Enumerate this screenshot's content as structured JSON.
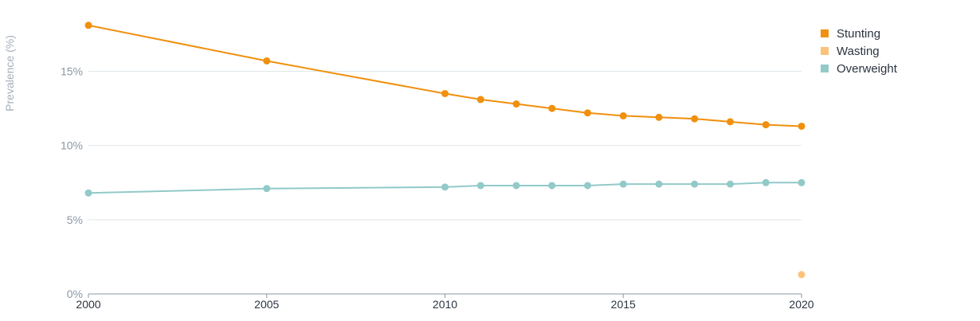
{
  "chart_data": {
    "type": "line",
    "ylabel": "Prevalence (%)",
    "xlabel": "",
    "ylim": [
      0,
      19
    ],
    "xlim": [
      2000,
      2020
    ],
    "y_ticks": [
      {
        "value": 0,
        "label": "0%"
      },
      {
        "value": 5,
        "label": "5%"
      },
      {
        "value": 10,
        "label": "10%"
      },
      {
        "value": 15,
        "label": "15%"
      }
    ],
    "x_ticks": [
      {
        "value": 2000,
        "label": "2000"
      },
      {
        "value": 2005,
        "label": "2005"
      },
      {
        "value": 2010,
        "label": "2010"
      },
      {
        "value": 2015,
        "label": "2015"
      },
      {
        "value": 2020,
        "label": "2020"
      }
    ],
    "grid": true,
    "legend_position": "top-right",
    "series": [
      {
        "name": "Stunting",
        "color": "#f0900e",
        "points": [
          {
            "x": 2000,
            "y": 18.1
          },
          {
            "x": 2005,
            "y": 15.7
          },
          {
            "x": 2010,
            "y": 13.5
          },
          {
            "x": 2011,
            "y": 13.1
          },
          {
            "x": 2012,
            "y": 12.8
          },
          {
            "x": 2013,
            "y": 12.5
          },
          {
            "x": 2014,
            "y": 12.2
          },
          {
            "x": 2015,
            "y": 12.0
          },
          {
            "x": 2016,
            "y": 11.9
          },
          {
            "x": 2017,
            "y": 11.8
          },
          {
            "x": 2018,
            "y": 11.6
          },
          {
            "x": 2019,
            "y": 11.4
          },
          {
            "x": 2020,
            "y": 11.3
          }
        ]
      },
      {
        "name": "Wasting",
        "color": "#fbc37a",
        "points": [
          {
            "x": 2020,
            "y": 1.3
          }
        ]
      },
      {
        "name": "Overweight",
        "color": "#92c9c9",
        "points": [
          {
            "x": 2000,
            "y": 6.8
          },
          {
            "x": 2005,
            "y": 7.1
          },
          {
            "x": 2010,
            "y": 7.2
          },
          {
            "x": 2011,
            "y": 7.3
          },
          {
            "x": 2012,
            "y": 7.3
          },
          {
            "x": 2013,
            "y": 7.3
          },
          {
            "x": 2014,
            "y": 7.3
          },
          {
            "x": 2015,
            "y": 7.4
          },
          {
            "x": 2016,
            "y": 7.4
          },
          {
            "x": 2017,
            "y": 7.4
          },
          {
            "x": 2018,
            "y": 7.4
          },
          {
            "x": 2019,
            "y": 7.5
          },
          {
            "x": 2020,
            "y": 7.5
          }
        ]
      }
    ],
    "colors": {
      "grid": "#dfe6ea",
      "axis": "#8a97a6"
    }
  }
}
